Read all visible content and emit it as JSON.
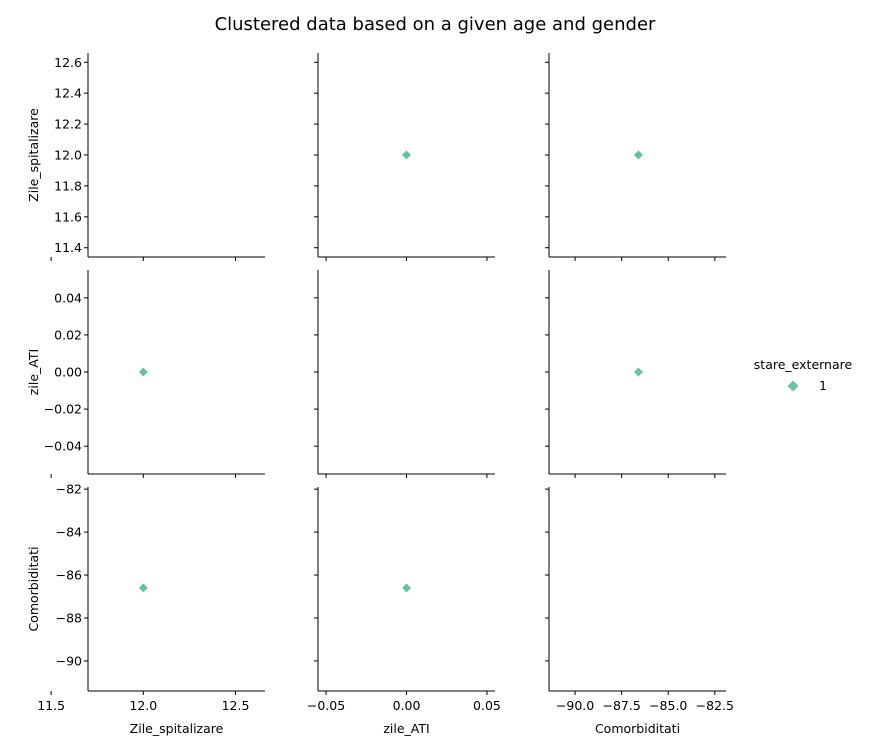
{
  "chart_data": {
    "type": "scatter",
    "title": "Clustered data based on a given age and gender",
    "variables": [
      "Zile_spitalizare",
      "zile_ATI",
      "Comorbiditati"
    ],
    "axes": [
      {
        "name": "Zile_spitalizare",
        "range": [
          11.34,
          12.66
        ],
        "ticks": [
          11.4,
          11.6,
          11.8,
          12.0,
          12.2,
          12.4,
          12.6
        ],
        "tick_labels": [
          "11.4",
          "11.6",
          "11.8",
          "12.0",
          "12.2",
          "12.4",
          "12.6"
        ],
        "x_range": [
          11.7,
          12.66
        ],
        "x_ticks": [
          11.5,
          12.0,
          12.5
        ],
        "x_tick_labels": [
          "11.5",
          "12.0",
          "12.5"
        ]
      },
      {
        "name": "zile_ATI",
        "range": [
          -0.055,
          0.055
        ],
        "ticks": [
          -0.04,
          -0.02,
          0.0,
          0.02,
          0.04
        ],
        "tick_labels": [
          "−0.04",
          "−0.02",
          "0.00",
          "0.02",
          "0.04"
        ],
        "x_range": [
          -0.055,
          0.055
        ],
        "x_ticks": [
          -0.05,
          0.0,
          0.05
        ],
        "x_tick_labels": [
          "−0.05",
          "0.00",
          "0.05"
        ]
      },
      {
        "name": "Comorbiditati",
        "range": [
          -91.4,
          -81.9
        ],
        "ticks": [
          -90,
          -88,
          -86,
          -84,
          -82
        ],
        "tick_labels": [
          "−90",
          "−88",
          "−86",
          "−84",
          "−82"
        ],
        "x_range": [
          -91.4,
          -81.9
        ],
        "x_ticks": [
          -90.0,
          -87.5,
          -85.0,
          -82.5
        ],
        "x_tick_labels": [
          "−90.0",
          "−87.5",
          "−85.0",
          "−82.5"
        ]
      }
    ],
    "series": [
      {
        "name": "1",
        "color": "#66c2a5",
        "marker": "diamond",
        "points": [
          {
            "Zile_spitalizare": 12.0,
            "zile_ATI": 0.0,
            "Comorbiditati": -86.6
          }
        ]
      }
    ],
    "legend": {
      "title": "stare_externare",
      "placement": "right"
    },
    "grid": false
  }
}
